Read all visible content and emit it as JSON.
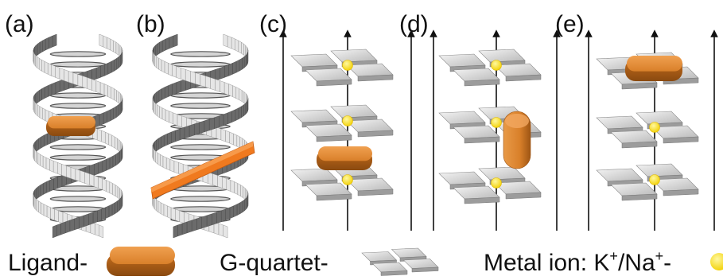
{
  "panels": [
    {
      "label": "(a)",
      "type": "dna-intercalation"
    },
    {
      "label": "(b)",
      "type": "dna-groove-binding"
    },
    {
      "label": "(c)",
      "type": "g-quadruplex-intercalated"
    },
    {
      "label": "(d)",
      "type": "g-quadruplex-groove"
    },
    {
      "label": "(e)",
      "type": "g-quadruplex-end-stacking"
    }
  ],
  "legend": {
    "ligand_label": "Ligand-",
    "gquartet_label": "G-quartet-",
    "metal_label_prefix": "Metal ion: K",
    "metal_label_mid": "/Na",
    "metal_label_suffix": "-",
    "superscript": "+"
  },
  "colors": {
    "ligand": "#d9802a",
    "ligand_dark": "#9e5514",
    "groove_ligand": "#f07a1f",
    "metal_ion": "#ffe21a",
    "quartet": "#c8c8c8",
    "helix": "#9a9a9a"
  }
}
